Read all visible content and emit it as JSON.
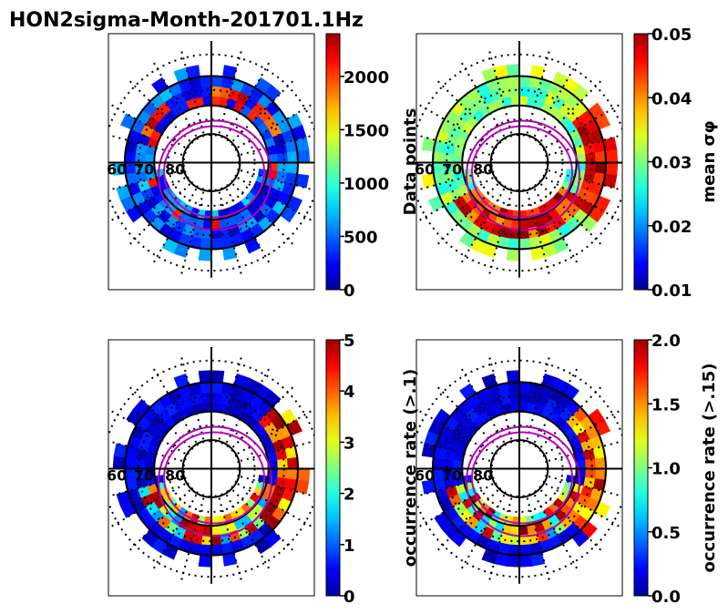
{
  "figure": {
    "title": "HON2sigma-Month-201701.1Hz"
  },
  "chart_data": [
    {
      "type": "heatmap",
      "projection": "polar",
      "panel": "top-left",
      "colorbar": {
        "label": "Data points",
        "colormap": "jet",
        "range": [
          0,
          2400
        ],
        "ticks": [
          0,
          500,
          1000,
          1500,
          2000
        ],
        "tick_labels": [
          "0",
          "500",
          "1000",
          "1500",
          "2000"
        ]
      },
      "latitude_labels": [
        "60",
        "70",
        "80"
      ],
      "pattern": "counts"
    },
    {
      "type": "heatmap",
      "projection": "polar",
      "panel": "top-right",
      "colorbar": {
        "label": "mean σφ",
        "colormap": "jet",
        "range": [
          0.01,
          0.05
        ],
        "ticks": [
          0.01,
          0.02,
          0.03,
          0.04,
          0.05
        ],
        "tick_labels": [
          "0.01",
          "0.02",
          "0.03",
          "0.04",
          "0.05"
        ]
      },
      "latitude_labels": [
        "60",
        "70",
        "80"
      ],
      "pattern": "mean"
    },
    {
      "type": "heatmap",
      "projection": "polar",
      "panel": "bottom-left",
      "colorbar": {
        "label": "occurrence rate (>.1)",
        "colormap": "jet",
        "range": [
          0,
          5
        ],
        "ticks": [
          0,
          1,
          2,
          3,
          4,
          5
        ],
        "tick_labels": [
          "0",
          "1",
          "2",
          "3",
          "4",
          "5"
        ]
      },
      "latitude_labels": [
        "60",
        "70",
        "80"
      ],
      "pattern": "rate"
    },
    {
      "type": "heatmap",
      "projection": "polar",
      "panel": "bottom-right",
      "colorbar": {
        "label": "occurrence rate (>.15)",
        "colormap": "jet",
        "range": [
          0.0,
          2.0
        ],
        "ticks": [
          0.0,
          0.5,
          1.0,
          1.5,
          2.0
        ],
        "tick_labels": [
          "0.0",
          "0.5",
          "1.0",
          "1.5",
          "2.0"
        ]
      },
      "latitude_labels": [
        "60",
        "70",
        "80"
      ],
      "pattern": "rate"
    }
  ]
}
